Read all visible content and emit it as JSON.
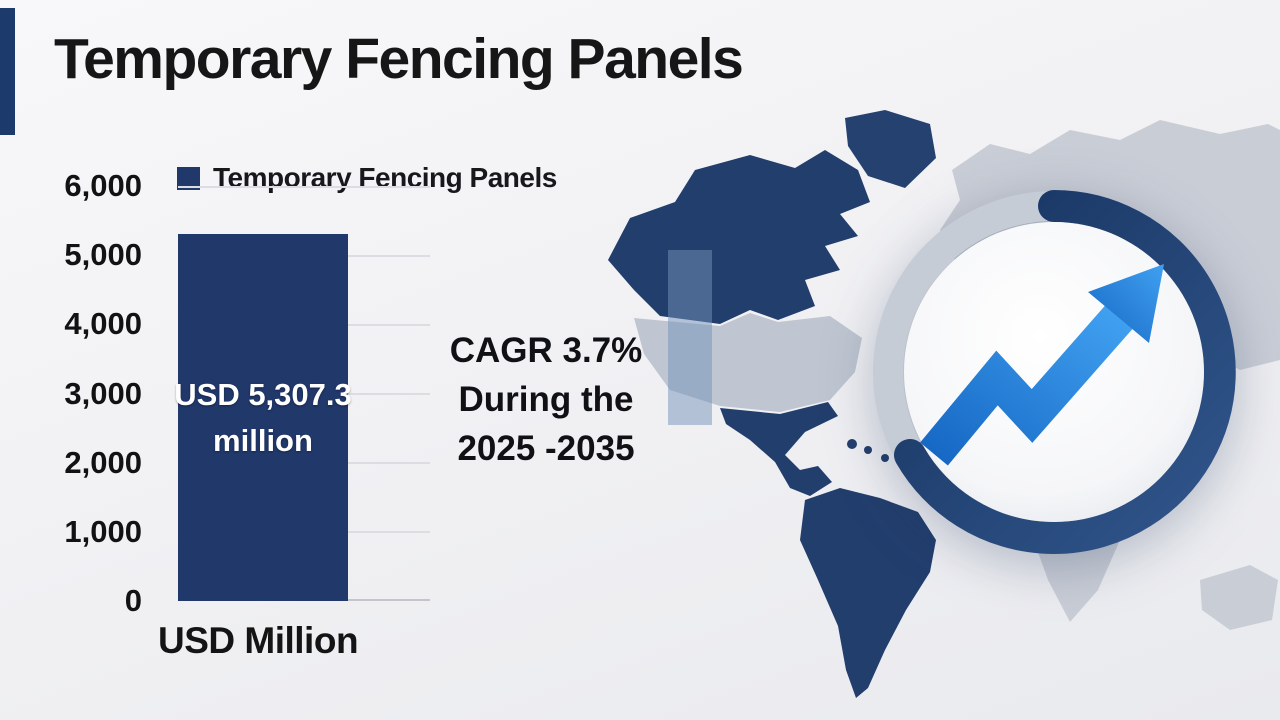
{
  "header": {
    "title": "Temporary Fencing Panels"
  },
  "chart_data": {
    "type": "bar",
    "title": "Temporary Fencing Panels",
    "categories": [
      "Temporary Fencing Panels"
    ],
    "values": [
      5307.3
    ],
    "series": [
      {
        "name": "Temporary Fencing Panels",
        "values": [
          5307.3
        ],
        "color": "#21386b"
      }
    ],
    "bar_label": "USD 5,307.3 million",
    "bar_label_lines": [
      "USD 5,307.3",
      "million"
    ],
    "ylabel": "USD Million",
    "xlabel": "",
    "ylim": [
      0,
      6000
    ],
    "yticks": [
      6000,
      5000,
      4000,
      3000,
      2000,
      1000,
      0
    ],
    "ytick_labels": [
      "6,000",
      "5,000",
      "4,000",
      "3,000",
      "2,000",
      "1,000",
      "0"
    ],
    "grid": true,
    "legend_position": "top"
  },
  "annotation": {
    "lines": [
      "CAGR 3.7%",
      "During the",
      "2025 -2035"
    ]
  },
  "icons": {
    "growth_arrow": "trend-up-arrow"
  },
  "colors": {
    "accent_navy": "#1d3a6d",
    "bar_navy": "#21386b",
    "arrow_blue": "#2b83dc",
    "map_gray": "#c9cdd6",
    "ring_silver": "#c6ccd6",
    "background": "#f0f0f3"
  }
}
